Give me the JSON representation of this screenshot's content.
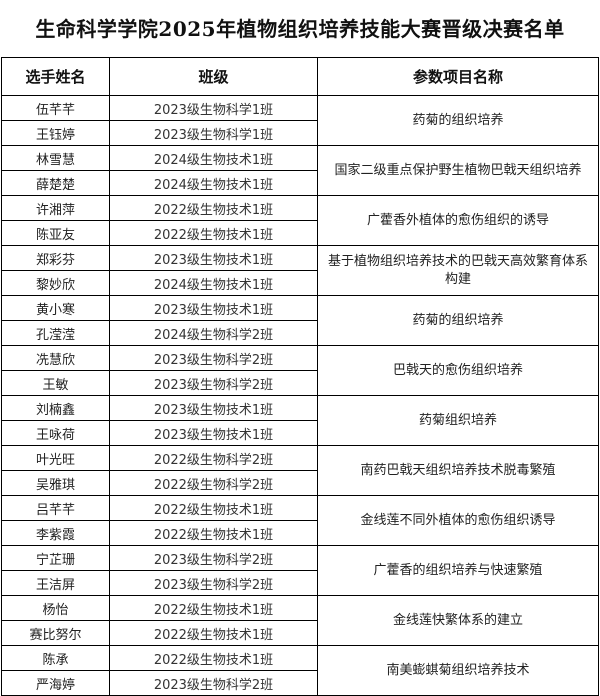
{
  "title": "生命科学学院2025年植物组织培养技能大赛晋级决赛名单",
  "headers": [
    "选手姓名",
    "班级",
    "参数项目名称"
  ],
  "groups": [
    {
      "project": "药菊的组织培养",
      "members": [
        [
          "伍芊芊",
          "2023级生物科学1班"
        ],
        [
          "王钰婷",
          "2023级生物科学1班"
        ]
      ]
    },
    {
      "project": "国家二级重点保护野生植物巴戟天组织培养",
      "members": [
        [
          "林雪慧",
          "2024级生物技术1班"
        ],
        [
          "薛楚楚",
          "2024级生物技术1班"
        ]
      ]
    },
    {
      "project": "广藿香外植体的愈伤组织的诱导",
      "members": [
        [
          "许湘萍",
          "2022级生物技术1班"
        ],
        [
          "陈亚友",
          "2022级生物技术1班"
        ]
      ]
    },
    {
      "project": "基于植物组织培养技术的巴戟天高效繁育体系构建",
      "members": [
        [
          "郑彩芬",
          "2023级生物技术1班"
        ],
        [
          "黎妙欣",
          "2024级生物技术1班"
        ]
      ]
    },
    {
      "project": "药菊的组织培养",
      "members": [
        [
          "黄小寒",
          "2023级生物技术1班"
        ],
        [
          "孔滢滢",
          "2024级生物科学2班"
        ]
      ]
    },
    {
      "project": "巴戟天的愈伤组织培养",
      "members": [
        [
          "冼慧欣",
          "2023级生物科学2班"
        ],
        [
          "王敏",
          "2023级生物科学2班"
        ]
      ]
    },
    {
      "project": "药菊组织培养",
      "members": [
        [
          "刘楠鑫",
          "2023级生物技术1班"
        ],
        [
          "王咏荷",
          "2023级生物技术1班"
        ]
      ]
    },
    {
      "project": "南药巴戟天组织培养技术脱毒繁殖",
      "members": [
        [
          "叶光旺",
          "2022级生物科学2班"
        ],
        [
          "吴雅琪",
          "2022级生物科学2班"
        ]
      ]
    },
    {
      "project": "金线莲不同外植体的愈伤组织诱导",
      "members": [
        [
          "吕芊芊",
          "2022级生物技术1班"
        ],
        [
          "李紫霞",
          "2022级生物技术1班"
        ]
      ]
    },
    {
      "project": "广藿香的组织培养与快速繁殖",
      "members": [
        [
          "宁芷珊",
          "2023级生物科学2班"
        ],
        [
          "王洁屏",
          "2023级生物科学2班"
        ]
      ]
    },
    {
      "project": "金线莲快繁体系的建立",
      "members": [
        [
          "杨怡",
          "2022级生物技术1班"
        ],
        [
          "赛比努尔",
          "2022级生物技术1班"
        ]
      ]
    },
    {
      "project": "南美蟛蜞菊组织培养技术",
      "members": [
        [
          "陈承",
          "2022级生物技术1班"
        ],
        [
          "严海婷",
          "2023级生物科学2班"
        ]
      ]
    }
  ]
}
